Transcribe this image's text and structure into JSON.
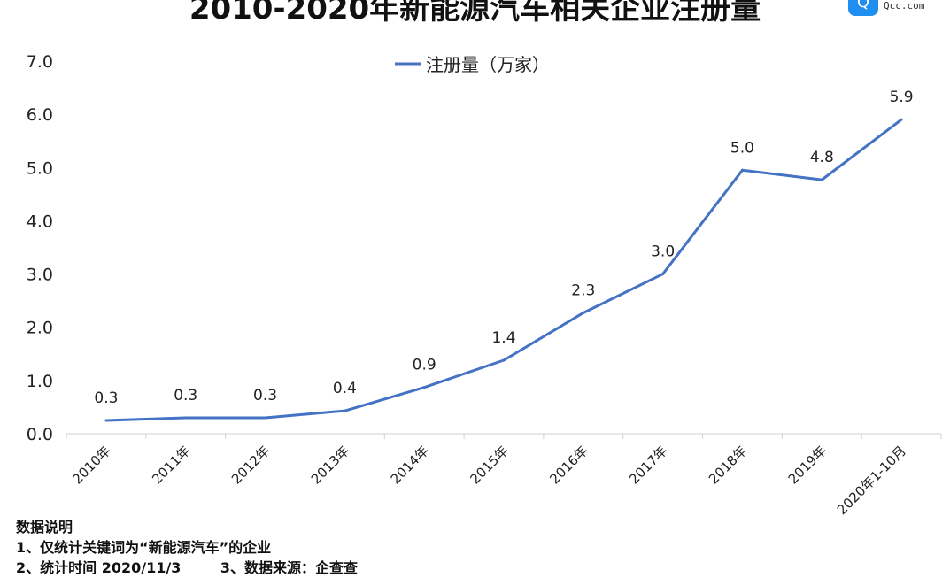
{
  "chart_data": {
    "type": "line",
    "title": "2010-2020年新能源汽车相关企业注册量",
    "categories": [
      "2010年",
      "2011年",
      "2012年",
      "2013年",
      "2014年",
      "2015年",
      "2016年",
      "2017年",
      "2018年",
      "2019年",
      "2020年1-10月"
    ],
    "series": [
      {
        "name": "注册量（万家）",
        "values": [
          0.25,
          0.3,
          0.3,
          0.43,
          0.87,
          1.38,
          2.27,
          3.0,
          4.95,
          4.77,
          5.9
        ],
        "labels": [
          "0.3",
          "0.3",
          "0.3",
          "0.4",
          "0.9",
          "1.4",
          "2.3",
          "3.0",
          "5.0",
          "4.8",
          "5.9"
        ],
        "color": "#4472c4"
      }
    ],
    "yticks": [
      "0.0",
      "1.0",
      "2.0",
      "3.0",
      "4.0",
      "5.0",
      "6.0",
      "7.0"
    ],
    "ylim": [
      0,
      7
    ],
    "grid": false,
    "legend": "top-center"
  },
  "logo": {
    "cn": "企查查",
    "en": "Qcc.com"
  },
  "notes": {
    "heading": "数据说明",
    "line1": "1、仅统计关键词为“新能源汽车”的企业",
    "line2": "2、统计时间 2020/11/3        3、数据来源：企查查"
  }
}
